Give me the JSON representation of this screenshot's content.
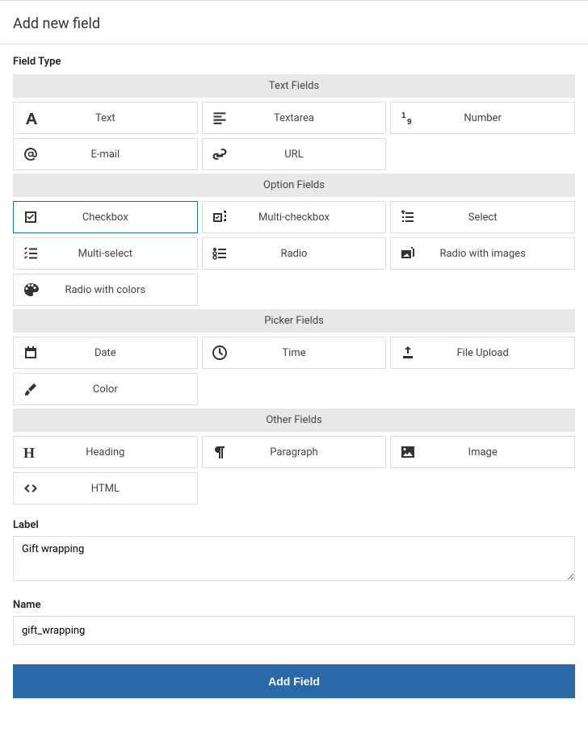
{
  "colors": {
    "border": "#dddddd",
    "group_header_bg": "#e8e8e8",
    "selected_border": "#1e6ea8",
    "submit_bg": "#2a6aa8",
    "icon_fill": "#333333",
    "text": "#222222"
  },
  "page_title": "Add new field",
  "field_type_label": "Field Type",
  "groups": [
    {
      "id": "text-fields",
      "title": "Text Fields",
      "options": [
        {
          "id": "text",
          "icon": "font",
          "label": "Text",
          "selected": false
        },
        {
          "id": "textarea",
          "icon": "align-left",
          "label": "Textarea",
          "selected": false
        },
        {
          "id": "number",
          "icon": "one-nine",
          "label": "Number",
          "selected": false
        },
        {
          "id": "email",
          "icon": "at",
          "label": "E-mail",
          "selected": false
        },
        {
          "id": "url",
          "icon": "link",
          "label": "URL",
          "selected": false
        }
      ]
    },
    {
      "id": "option-fields",
      "title": "Option Fields",
      "options": [
        {
          "id": "checkbox",
          "icon": "check-square",
          "label": "Checkbox",
          "selected": true
        },
        {
          "id": "multi-checkbox",
          "icon": "check-squares",
          "label": "Multi-checkbox",
          "selected": false
        },
        {
          "id": "select",
          "icon": "dropdown",
          "label": "Select",
          "selected": false
        },
        {
          "id": "multi-select",
          "icon": "list-check",
          "label": "Multi-select",
          "selected": false
        },
        {
          "id": "radio",
          "icon": "list-radio",
          "label": "Radio",
          "selected": false
        },
        {
          "id": "radio-images",
          "icon": "images",
          "label": "Radio with images",
          "selected": false
        },
        {
          "id": "radio-colors",
          "icon": "palette",
          "label": "Radio with colors",
          "selected": false
        }
      ]
    },
    {
      "id": "picker-fields",
      "title": "Picker Fields",
      "options": [
        {
          "id": "date",
          "icon": "calendar",
          "label": "Date",
          "selected": false
        },
        {
          "id": "time",
          "icon": "clock",
          "label": "Time",
          "selected": false
        },
        {
          "id": "upload",
          "icon": "upload",
          "label": "File Upload",
          "selected": false
        },
        {
          "id": "color",
          "icon": "brush",
          "label": "Color",
          "selected": false
        }
      ]
    },
    {
      "id": "other-fields",
      "title": "Other Fields",
      "options": [
        {
          "id": "heading",
          "icon": "heading",
          "label": "Heading",
          "selected": false
        },
        {
          "id": "paragraph",
          "icon": "pilcrow",
          "label": "Paragraph",
          "selected": false
        },
        {
          "id": "image",
          "icon": "image",
          "label": "Image",
          "selected": false
        },
        {
          "id": "html",
          "icon": "code",
          "label": "HTML",
          "selected": false
        }
      ]
    }
  ],
  "label_field": {
    "label": "Label",
    "value": "Gift wrapping"
  },
  "name_field": {
    "label": "Name",
    "value": "gift_wrapping"
  },
  "submit_label": "Add Field"
}
